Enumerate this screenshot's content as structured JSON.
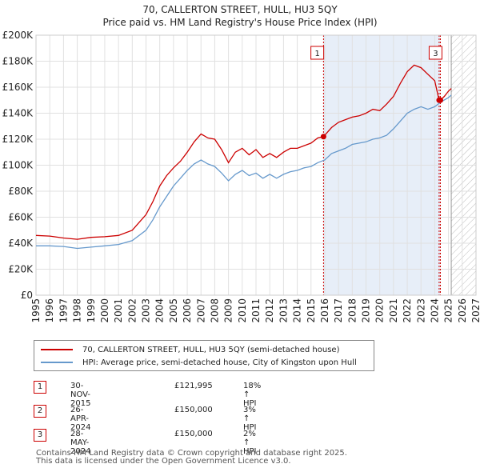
{
  "title": "70, CALLERTON STREET, HULL, HU3 5QY",
  "subtitle": "Price paid vs. HM Land Registry's House Price Index (HPI)",
  "legend": [
    {
      "label": "70, CALLERTON STREET, HULL, HU3 5QY (semi-detached house)",
      "color": "#cc0000"
    },
    {
      "label": "HPI: Average price, semi-detached house, City of Kingston upon Hull",
      "color": "#6699cc"
    }
  ],
  "transactions": [
    {
      "num": "1",
      "date": "30-NOV-2015",
      "price": "£121,995",
      "hpi": "18% ↑ HPI"
    },
    {
      "num": "2",
      "date": "26-APR-2024",
      "price": "£150,000",
      "hpi": "3% ↑ HPI"
    },
    {
      "num": "3",
      "date": "28-MAY-2024",
      "price": "£150,000",
      "hpi": "2% ↑ HPI"
    }
  ],
  "footer": {
    "line1": "Contains HM Land Registry data © Crown copyright and database right 2025.",
    "line2": "This data is licensed under the Open Government Licence v3.0."
  },
  "chart_data": {
    "type": "line",
    "title": "70, CALLERTON STREET, HULL, HU3 5QY",
    "xlabel": "",
    "ylabel": "",
    "xlim": [
      1995,
      2027
    ],
    "ylim": [
      0,
      200000
    ],
    "yticks": [
      0,
      20000,
      40000,
      60000,
      80000,
      100000,
      120000,
      140000,
      160000,
      180000,
      200000
    ],
    "ytick_labels": [
      "£0",
      "£20K",
      "£40K",
      "£60K",
      "£80K",
      "£100K",
      "£120K",
      "£140K",
      "£160K",
      "£180K",
      "£200K"
    ],
    "xticks": [
      1995,
      1996,
      1997,
      1998,
      1999,
      2000,
      2001,
      2002,
      2003,
      2004,
      2005,
      2006,
      2007,
      2008,
      2009,
      2010,
      2011,
      2012,
      2013,
      2014,
      2015,
      2016,
      2017,
      2018,
      2019,
      2020,
      2021,
      2022,
      2023,
      2024,
      2025,
      2026,
      2027
    ],
    "grid": true,
    "shaded_period": [
      2015.91,
      2024.4
    ],
    "forecast_from": 2025.2,
    "series": [
      {
        "name": "70, CALLERTON STREET, HULL, HU3 5QY (semi-detached house)",
        "color": "#cc0000",
        "x": [
          1995,
          1996,
          1997,
          1998,
          1999,
          2000,
          2001,
          2002,
          2003,
          2003.5,
          2004,
          2004.5,
          2005,
          2005.5,
          2006,
          2006.5,
          2007,
          2007.5,
          2008,
          2008.5,
          2009,
          2009.5,
          2010,
          2010.5,
          2011,
          2011.5,
          2012,
          2012.5,
          2013,
          2013.5,
          2014,
          2014.5,
          2015,
          2015.5,
          2015.91,
          2016.5,
          2017,
          2017.5,
          2018,
          2018.5,
          2019,
          2019.5,
          2020,
          2020.5,
          2021,
          2021.5,
          2022,
          2022.5,
          2023,
          2023.5,
          2024.0,
          2024.32,
          2024.41,
          2024.7,
          2025,
          2025.2
        ],
        "y": [
          46000,
          45500,
          44000,
          43000,
          44500,
          45000,
          46000,
          50000,
          62000,
          72000,
          84000,
          92000,
          98000,
          103000,
          110000,
          118000,
          124000,
          121000,
          120000,
          112000,
          102000,
          110000,
          113000,
          108000,
          112000,
          106000,
          109000,
          106000,
          110000,
          113000,
          113000,
          115000,
          117000,
          121000,
          121995,
          129000,
          133000,
          135000,
          137000,
          138000,
          140000,
          143000,
          142000,
          147000,
          153000,
          163000,
          172000,
          177000,
          175000,
          170000,
          165000,
          150000,
          150000,
          153000,
          157000,
          159000
        ]
      },
      {
        "name": "HPI: Average price, semi-detached house, City of Kingston upon Hull",
        "color": "#6699cc",
        "x": [
          1995,
          1996,
          1997,
          1998,
          1999,
          2000,
          2001,
          2002,
          2003,
          2003.5,
          2004,
          2004.5,
          2005,
          2005.5,
          2006,
          2006.5,
          2007,
          2007.5,
          2008,
          2008.5,
          2009,
          2009.5,
          2010,
          2010.5,
          2011,
          2011.5,
          2012,
          2012.5,
          2013,
          2013.5,
          2014,
          2014.5,
          2015,
          2015.5,
          2016,
          2016.5,
          2017,
          2017.5,
          2018,
          2018.5,
          2019,
          2019.5,
          2020,
          2020.5,
          2021,
          2021.5,
          2022,
          2022.5,
          2023,
          2023.5,
          2024,
          2024.5,
          2025,
          2025.2
        ],
        "y": [
          38000,
          38000,
          37500,
          36000,
          37000,
          38000,
          39000,
          42000,
          50000,
          58000,
          68000,
          76000,
          84000,
          90000,
          96000,
          101000,
          104000,
          101000,
          99000,
          94000,
          88000,
          93000,
          96000,
          92000,
          94000,
          90000,
          93000,
          90000,
          93000,
          95000,
          96000,
          98000,
          99000,
          102000,
          104000,
          109000,
          111000,
          113000,
          116000,
          117000,
          118000,
          120000,
          121000,
          123000,
          128000,
          134000,
          140000,
          143000,
          145000,
          143000,
          145000,
          149000,
          152000,
          154000
        ]
      }
    ],
    "markers": [
      {
        "label": "1",
        "x": 2015.91,
        "y": 121995
      },
      {
        "label": "2",
        "x": 2024.32,
        "y": 150000
      },
      {
        "label": "3",
        "x": 2024.41,
        "y": 150000
      }
    ]
  }
}
